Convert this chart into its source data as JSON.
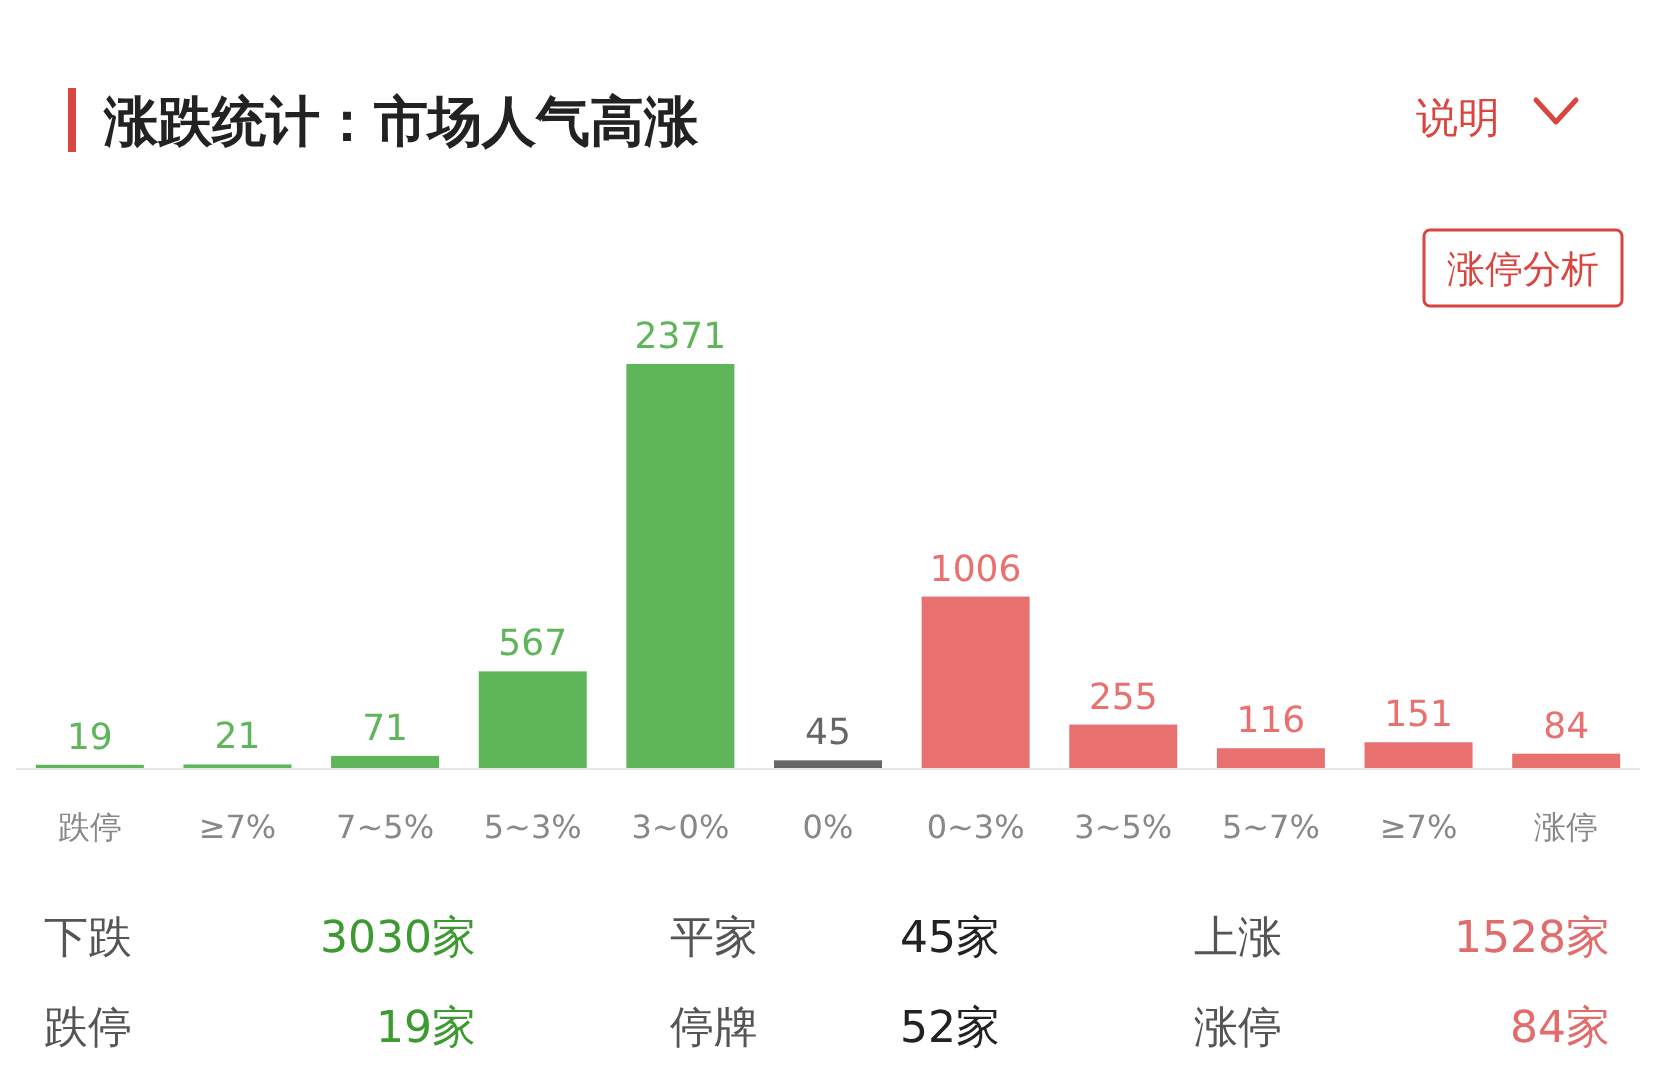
{
  "chart_data": {
    "type": "bar",
    "title": "涨跌统计：市场人气高涨",
    "categories": [
      "跌停",
      "≥7%",
      "7~5%",
      "5~3%",
      "3~0%",
      "0%",
      "0~3%",
      "3~5%",
      "5~7%",
      "≥7%",
      "涨停"
    ],
    "values": [
      19,
      21,
      71,
      567,
      2371,
      45,
      1006,
      255,
      116,
      151,
      84
    ],
    "colors": [
      "#5fb55a",
      "#5fb55a",
      "#5fb55a",
      "#5fb55a",
      "#5fb55a",
      "#666666",
      "#e8716f",
      "#e8716f",
      "#e8716f",
      "#e8716f",
      "#e8716f"
    ],
    "data_labels": true,
    "annotations": [
      "说明",
      "涨停分析",
      "下跌",
      "3030家",
      "平家",
      "45家",
      "上涨",
      "1528家",
      "跌停",
      "19家",
      "停牌",
      "52家",
      "涨停",
      "84家"
    ]
  }
}
